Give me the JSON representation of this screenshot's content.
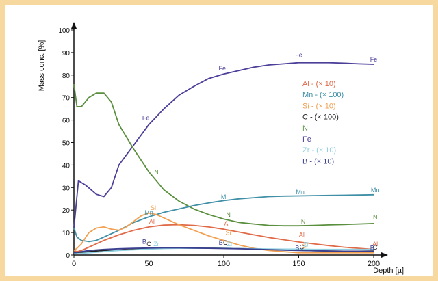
{
  "chart_data": {
    "type": "line",
    "xlabel": "Depth [µ]",
    "ylabel": "Mass conc. [%]",
    "xlim": [
      0,
      200
    ],
    "ylim": [
      0,
      100
    ],
    "x_ticks": [
      0,
      50,
      100,
      150,
      200
    ],
    "y_ticks": [
      0,
      10,
      20,
      30,
      40,
      50,
      60,
      70,
      80,
      90,
      100
    ],
    "grid": false,
    "legend_position": "right, upper-middle",
    "background": "#f7d9a0",
    "series": [
      {
        "name": "Fe",
        "color": "#4b3f99",
        "x": [
          0,
          3,
          8,
          15,
          20,
          25,
          30,
          40,
          50,
          60,
          70,
          80,
          90,
          100,
          110,
          120,
          130,
          140,
          150,
          160,
          170,
          180,
          190,
          200
        ],
        "values": [
          12,
          33,
          31,
          27,
          26,
          30,
          40,
          49,
          58,
          65,
          71,
          75,
          78.5,
          80.5,
          82,
          83.5,
          84.5,
          85,
          85.5,
          85.5,
          85.5,
          85.3,
          85,
          84.8
        ],
        "point_labels": [
          {
            "x": 48,
            "y": 60,
            "text": "Fe"
          },
          {
            "x": 99,
            "y": 82,
            "text": "Fe"
          },
          {
            "x": 150,
            "y": 88,
            "text": "Fe"
          },
          {
            "x": 200,
            "y": 86,
            "text": "Fe"
          }
        ]
      },
      {
        "name": "N",
        "color": "#5a8f3e",
        "x": [
          0,
          2,
          5,
          10,
          15,
          20,
          25,
          30,
          40,
          50,
          60,
          70,
          80,
          90,
          100,
          110,
          120,
          130,
          140,
          150,
          160,
          170,
          180,
          190,
          200
        ],
        "values": [
          76,
          66,
          66,
          70,
          72,
          72,
          68,
          58,
          47,
          37,
          29,
          24,
          20.5,
          18,
          16,
          14.5,
          13.8,
          13.2,
          13,
          13,
          13.2,
          13.4,
          13.6,
          13.8,
          14
        ],
        "point_labels": [
          {
            "x": 55,
            "y": 36,
            "text": "N"
          },
          {
            "x": 103,
            "y": 17,
            "text": "N"
          },
          {
            "x": 153,
            "y": 14,
            "text": "N"
          },
          {
            "x": 201,
            "y": 16,
            "text": "N"
          }
        ]
      },
      {
        "name": "Mn - (× 100)",
        "color": "#3f8fa6",
        "x": [
          0,
          2,
          5,
          10,
          15,
          20,
          30,
          40,
          50,
          60,
          70,
          80,
          90,
          100,
          110,
          120,
          130,
          140,
          150,
          160,
          170,
          180,
          190,
          200
        ],
        "values": [
          12,
          8,
          6.5,
          6,
          6.5,
          8,
          11,
          14.5,
          17,
          19,
          20.5,
          22,
          23.2,
          24.2,
          25,
          25.5,
          26,
          26.2,
          26.3,
          26.4,
          26.5,
          26.6,
          26.7,
          26.8
        ],
        "point_labels": [
          {
            "x": 50,
            "y": 18,
            "text": "Mn"
          },
          {
            "x": 101,
            "y": 25,
            "text": "Mn"
          },
          {
            "x": 151,
            "y": 27,
            "text": "Mn"
          },
          {
            "x": 201,
            "y": 28,
            "text": "Mn"
          }
        ]
      },
      {
        "name": "Al - (× 10)",
        "color": "#e06a48",
        "x": [
          0,
          2,
          5,
          10,
          15,
          20,
          30,
          40,
          50,
          60,
          70,
          80,
          90,
          100,
          110,
          120,
          130,
          140,
          150,
          160,
          170,
          180,
          190,
          200
        ],
        "values": [
          2,
          1.5,
          2,
          3.5,
          5,
          6.5,
          9,
          11,
          12.5,
          13.3,
          13.5,
          13.2,
          12.5,
          11.5,
          10.2,
          9,
          7.8,
          6.8,
          5.8,
          5,
          4.2,
          3.5,
          3,
          2.5
        ],
        "point_labels": [
          {
            "x": 52,
            "y": 14,
            "text": "Al"
          },
          {
            "x": 102,
            "y": 13,
            "text": "Al"
          },
          {
            "x": 152,
            "y": 8,
            "text": "Al"
          },
          {
            "x": 201,
            "y": 4,
            "text": "Al"
          }
        ]
      },
      {
        "name": "Si - (× 10)",
        "color": "#f0a050",
        "x": [
          0,
          2,
          5,
          10,
          15,
          20,
          25,
          30,
          35,
          40,
          45,
          50,
          55,
          60,
          70,
          80,
          90,
          100,
          110,
          120,
          130,
          140,
          150,
          160,
          170,
          180,
          190,
          200
        ],
        "values": [
          2,
          3,
          5,
          10,
          12,
          12.5,
          11.5,
          11,
          12.5,
          15,
          17.5,
          18.7,
          18,
          16.5,
          13.5,
          11,
          8.5,
          6.5,
          4.5,
          3,
          2,
          1.5,
          1,
          1,
          1,
          1,
          1,
          1
        ],
        "point_labels": [
          {
            "x": 53,
            "y": 20,
            "text": "Si"
          },
          {
            "x": 103,
            "y": 9,
            "text": "Si"
          },
          {
            "x": 154,
            "y": 3,
            "text": "Si"
          }
        ]
      },
      {
        "name": "C - (× 100)",
        "color": "#222222",
        "x": [
          0,
          5,
          10,
          20,
          30,
          40,
          50,
          60,
          70,
          80,
          90,
          100,
          110,
          120,
          130,
          140,
          150,
          160,
          170,
          180,
          190,
          200
        ],
        "values": [
          0.5,
          1,
          1.5,
          2,
          2.2,
          2.5,
          2.8,
          3,
          3.2,
          3.2,
          3.1,
          3,
          2.9,
          2.7,
          2.5,
          2.3,
          2.1,
          1.9,
          1.8,
          1.7,
          1.7,
          1.8
        ],
        "point_labels": [
          {
            "x": 50,
            "y": 4,
            "text": "C"
          },
          {
            "x": 101,
            "y": 4.5,
            "text": "C"
          },
          {
            "x": 152,
            "y": 2.6,
            "text": "C"
          },
          {
            "x": 201,
            "y": 2.4,
            "text": "C"
          }
        ]
      },
      {
        "name": "Zr - (× 10)",
        "color": "#8fcfe0",
        "x": [
          0,
          10,
          20,
          30,
          40,
          50,
          60,
          70,
          80,
          90,
          100,
          110,
          120,
          130,
          140,
          150,
          160,
          170,
          180,
          190,
          200
        ],
        "values": [
          0.5,
          1,
          1.5,
          2,
          2.3,
          2.6,
          2.9,
          3,
          3,
          3,
          3,
          2.9,
          2.8,
          2.7,
          2.6,
          2.6,
          2.5,
          2.5,
          2.5,
          2.5,
          2.5
        ],
        "point_labels": [
          {
            "x": 55,
            "y": 4,
            "text": "Zr"
          },
          {
            "x": 104,
            "y": 4,
            "text": "Zr"
          },
          {
            "x": 155,
            "y": 3.8,
            "text": "Zr"
          }
        ]
      },
      {
        "name": "B - (× 10)",
        "color": "#3a3f8f",
        "x": [
          0,
          5,
          10,
          20,
          30,
          40,
          50,
          60,
          70,
          80,
          90,
          100,
          110,
          120,
          130,
          140,
          150,
          160,
          170,
          180,
          190,
          200
        ],
        "values": [
          1,
          1.5,
          2,
          2.5,
          2.8,
          3,
          3.1,
          3.2,
          3.2,
          3.1,
          3,
          2.9,
          2.8,
          2.6,
          2.4,
          2.2,
          2,
          1.9,
          1.8,
          1.7,
          1.7,
          1.6
        ],
        "point_labels": [
          {
            "x": 47,
            "y": 5,
            "text": "B"
          },
          {
            "x": 98,
            "y": 4.5,
            "text": "B"
          },
          {
            "x": 149,
            "y": 2.3,
            "text": "B"
          },
          {
            "x": 199,
            "y": 2.3,
            "text": "B"
          }
        ]
      }
    ]
  }
}
